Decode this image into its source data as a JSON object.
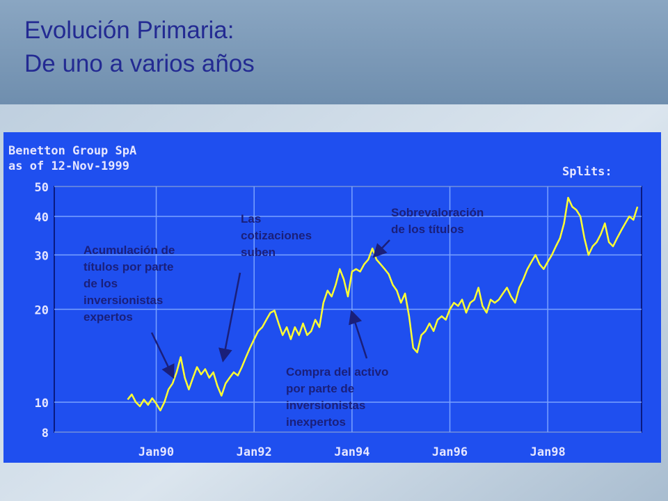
{
  "slide_title": [
    "Evolución Primaria:",
    "De uno a varios años"
  ],
  "chart_data": {
    "type": "line",
    "title": "Benetton Group SpA",
    "subtitle": "as of 12-Nov-1999",
    "splits_label": "Splits:",
    "log_scale": true,
    "grid": true,
    "ylim": [
      8,
      50
    ],
    "yticks": [
      8,
      10,
      20,
      30,
      40,
      50
    ],
    "xlim": [
      "1987-12",
      "1999-12"
    ],
    "xticks": [
      {
        "value": "1990-01",
        "label": "Jan90"
      },
      {
        "value": "1992-01",
        "label": "Jan92"
      },
      {
        "value": "1994-01",
        "label": "Jan94"
      },
      {
        "value": "1996-01",
        "label": "Jan96"
      },
      {
        "value": "1998-01",
        "label": "Jan98"
      }
    ],
    "x": [
      "1989-06",
      "1989-07",
      "1989-08",
      "1989-09",
      "1989-10",
      "1989-11",
      "1989-12",
      "1990-01",
      "1990-02",
      "1990-03",
      "1990-04",
      "1990-05",
      "1990-06",
      "1990-07",
      "1990-08",
      "1990-09",
      "1990-10",
      "1990-11",
      "1990-12",
      "1991-01",
      "1991-02",
      "1991-03",
      "1991-04",
      "1991-05",
      "1991-06",
      "1991-07",
      "1991-08",
      "1991-09",
      "1991-10",
      "1991-11",
      "1991-12",
      "1992-01",
      "1992-02",
      "1992-03",
      "1992-04",
      "1992-05",
      "1992-06",
      "1992-07",
      "1992-08",
      "1992-09",
      "1992-10",
      "1992-11",
      "1992-12",
      "1993-01",
      "1993-02",
      "1993-03",
      "1993-04",
      "1993-05",
      "1993-06",
      "1993-07",
      "1993-08",
      "1993-09",
      "1993-10",
      "1993-11",
      "1993-12",
      "1994-01",
      "1994-02",
      "1994-03",
      "1994-04",
      "1994-05",
      "1994-06",
      "1994-07",
      "1994-08",
      "1994-09",
      "1994-10",
      "1994-11",
      "1994-12",
      "1995-01",
      "1995-02",
      "1995-03",
      "1995-04",
      "1995-05",
      "1995-06",
      "1995-07",
      "1995-08",
      "1995-09",
      "1995-10",
      "1995-11",
      "1995-12",
      "1996-01",
      "1996-02",
      "1996-03",
      "1996-04",
      "1996-05",
      "1996-06",
      "1996-07",
      "1996-08",
      "1996-09",
      "1996-10",
      "1996-11",
      "1996-12",
      "1997-01",
      "1997-02",
      "1997-03",
      "1997-04",
      "1997-05",
      "1997-06",
      "1997-07",
      "1997-08",
      "1997-09",
      "1997-10",
      "1997-11",
      "1997-12",
      "1998-01",
      "1998-02",
      "1998-03",
      "1998-04",
      "1998-05",
      "1998-06",
      "1998-07",
      "1998-08",
      "1998-09",
      "1998-10",
      "1998-11",
      "1998-12",
      "1999-01",
      "1999-02",
      "1999-03",
      "1999-04",
      "1999-05",
      "1999-06",
      "1999-07",
      "1999-08",
      "1999-09",
      "1999-10",
      "1999-11"
    ],
    "series": [
      {
        "name": "Benetton Group SpA",
        "color": "#ffff33",
        "values": [
          10.2,
          10.6,
          10.0,
          9.7,
          10.2,
          9.8,
          10.3,
          9.9,
          9.4,
          10.0,
          11.0,
          11.5,
          12.5,
          14.0,
          12.0,
          11.0,
          12.0,
          13.0,
          12.3,
          12.8,
          12.0,
          12.5,
          11.3,
          10.5,
          11.5,
          12.0,
          12.5,
          12.2,
          13.0,
          14.0,
          15.0,
          16.0,
          17.0,
          17.5,
          18.5,
          19.5,
          19.8,
          18.0,
          16.5,
          17.5,
          16.0,
          17.5,
          16.5,
          18.0,
          16.5,
          17.0,
          18.5,
          17.5,
          21.0,
          23.0,
          22.0,
          24.0,
          27.0,
          25.0,
          22.0,
          26.5,
          27.0,
          26.5,
          28.0,
          29.0,
          31.5,
          29.0,
          28.0,
          27.0,
          26.0,
          24.0,
          23.0,
          21.0,
          22.5,
          19.0,
          15.0,
          14.5,
          16.5,
          17.0,
          18.0,
          17.0,
          18.5,
          19.0,
          18.5,
          20.0,
          21.0,
          20.5,
          21.5,
          19.5,
          21.0,
          21.5,
          23.5,
          20.5,
          19.5,
          21.5,
          21.0,
          21.5,
          22.5,
          23.5,
          22.0,
          21.0,
          23.5,
          25.0,
          27.0,
          28.5,
          30.0,
          28.0,
          27.0,
          28.5,
          30.0,
          32.0,
          34.0,
          38.0,
          46.0,
          43.0,
          42.0,
          40.0,
          34.0,
          30.0,
          32.0,
          33.0,
          35.0,
          38.0,
          33.0,
          32.0,
          34.0,
          36.0,
          38.0,
          40.0,
          39.0,
          43.0
        ]
      }
    ],
    "annotations": [
      {
        "lines": [
          "Acumulación de",
          "títulos por parte",
          "de los",
          "inversionistas",
          "expertos"
        ]
      },
      {
        "lines": [
          "Las",
          "cotizaciones",
          "suben"
        ]
      },
      {
        "lines": [
          "Sobrevaloración",
          "de los títulos"
        ]
      },
      {
        "lines": [
          "Compra del activo",
          "por parte de",
          "inversionistas",
          "inexpertos"
        ]
      }
    ]
  }
}
